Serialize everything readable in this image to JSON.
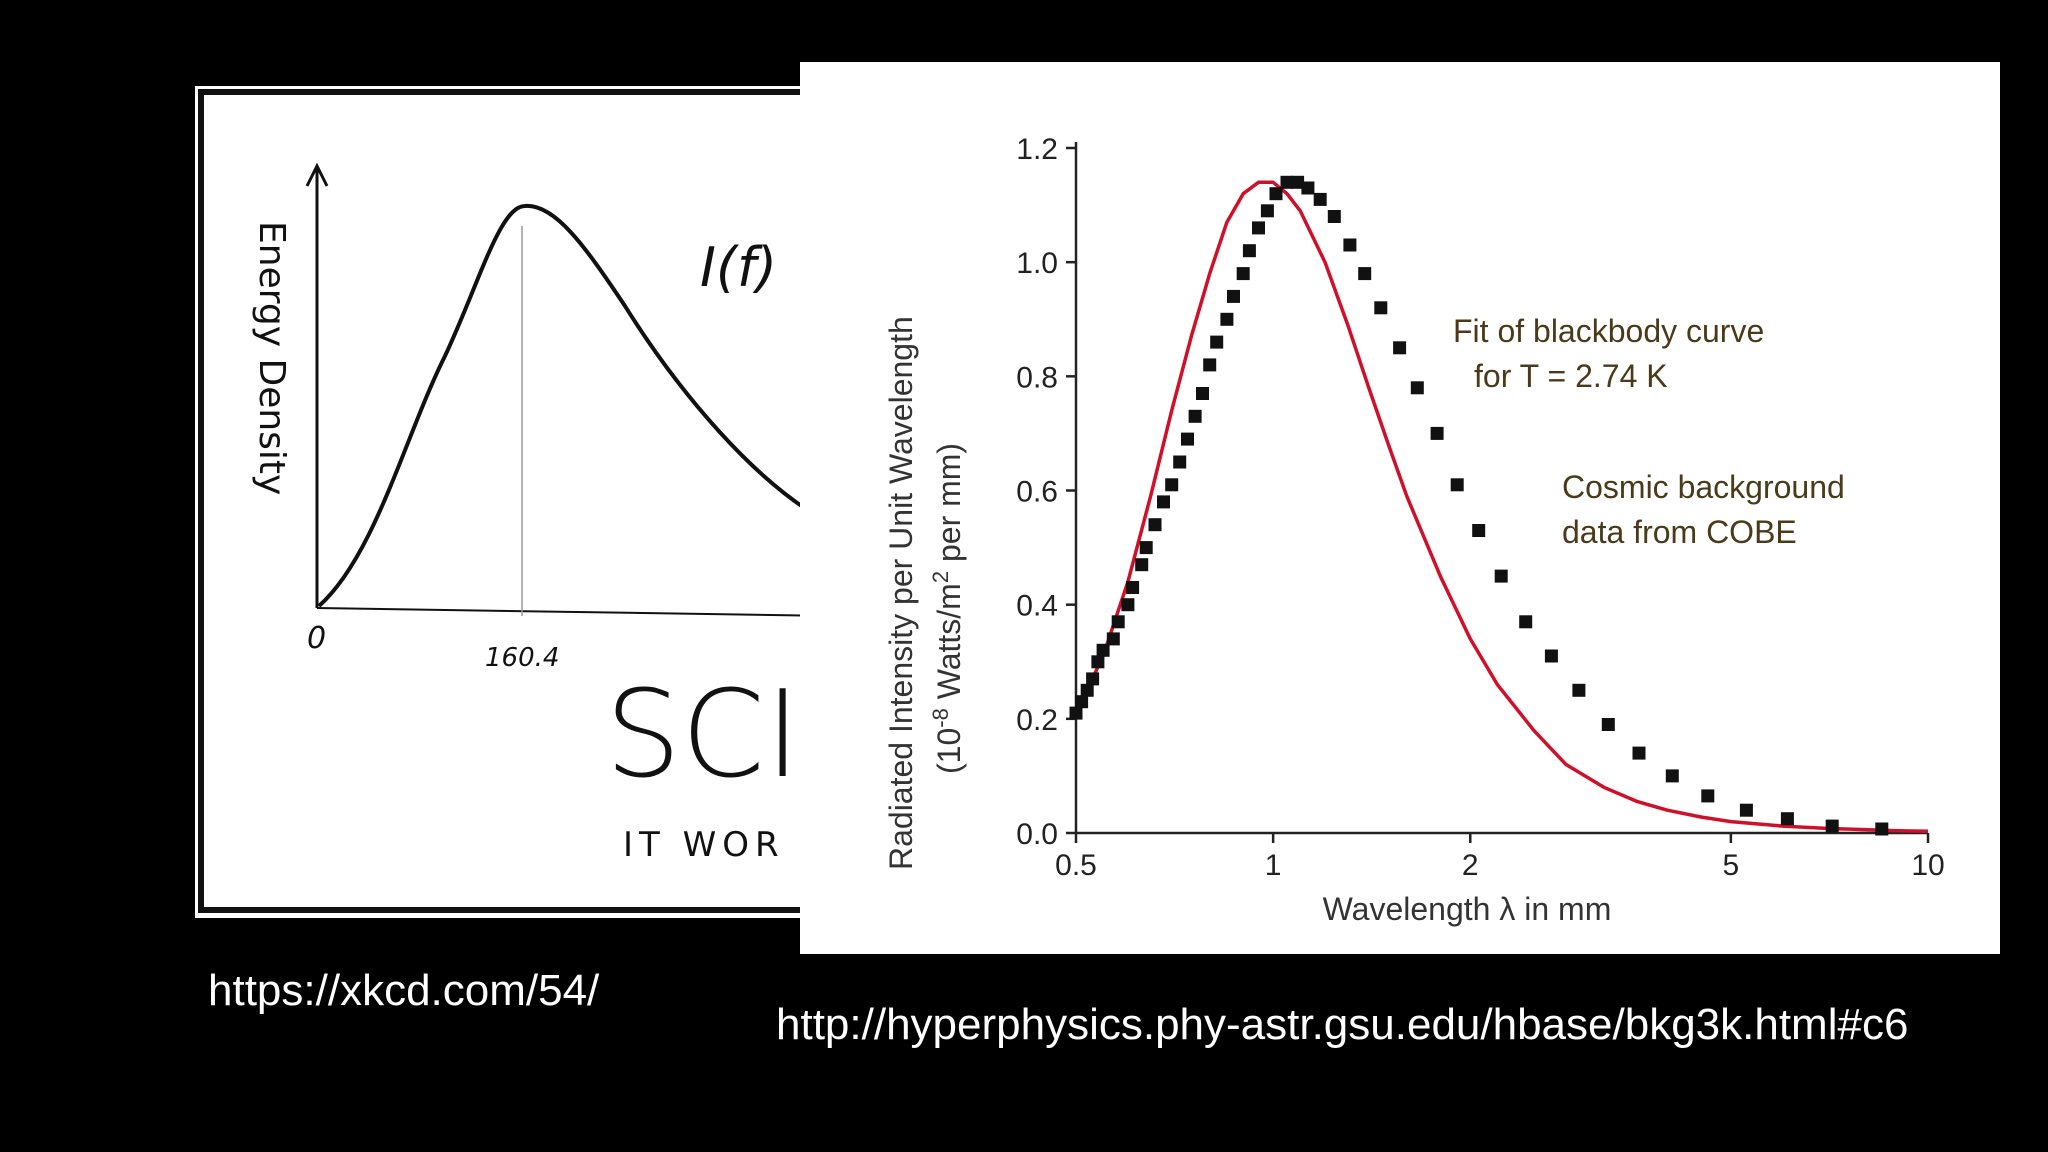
{
  "comic": {
    "ylabel": "Energy Density",
    "origin_label": "0",
    "peak_label": "160.4",
    "formula_fragment": "I(f)",
    "big_text": "SCI",
    "subtext": "IT WOR"
  },
  "chart_data": {
    "type": "scatter",
    "title": "",
    "xlabel": "Wavelength λ in mm",
    "ylabel_line1": "Radiated Intensity per Unit Wavelength",
    "ylabel_line2_prefix": "(10",
    "ylabel_line2_exp": "-8",
    "ylabel_line2_mid": " Watts/m",
    "ylabel_line2_exp2": "2",
    "ylabel_line2_suffix": " per mm)",
    "x_scale": "log",
    "xlim": [
      0.5,
      10
    ],
    "ylim": [
      0.0,
      1.2
    ],
    "x_ticks": [
      0.5,
      1,
      2,
      5,
      10
    ],
    "x_tick_labels": [
      "0.5",
      "1",
      "2",
      "5",
      "10"
    ],
    "y_ticks": [
      0.0,
      0.2,
      0.4,
      0.6,
      0.8,
      1.0,
      1.2
    ],
    "y_tick_labels": [
      "0.0",
      "0.2",
      "0.4",
      "0.6",
      "0.8",
      "1.0",
      "1.2"
    ],
    "annotations": [
      "Fit of blackbody curve",
      "for T = 2.74 K",
      "Cosmic background",
      "data from COBE"
    ],
    "series": [
      {
        "kind": "line",
        "color": "#d0102a",
        "x": [
          0.5,
          0.55,
          0.6,
          0.65,
          0.7,
          0.75,
          0.8,
          0.85,
          0.9,
          0.95,
          1.0,
          1.05,
          1.1,
          1.2,
          1.3,
          1.4,
          1.5,
          1.6,
          1.8,
          2.0,
          2.2,
          2.5,
          2.8,
          3.2,
          3.6,
          4.0,
          4.5,
          5.0,
          6.0,
          7.0,
          8.0,
          9.0,
          10.0
        ],
        "y": [
          0.21,
          0.31,
          0.44,
          0.59,
          0.74,
          0.87,
          0.98,
          1.07,
          1.12,
          1.14,
          1.14,
          1.12,
          1.09,
          1.0,
          0.89,
          0.78,
          0.68,
          0.59,
          0.45,
          0.34,
          0.26,
          0.18,
          0.12,
          0.08,
          0.055,
          0.04,
          0.028,
          0.02,
          0.012,
          0.008,
          0.006,
          0.004,
          0.003
        ]
      },
      {
        "kind": "points",
        "color": "#111111",
        "x": [
          0.5,
          0.51,
          0.52,
          0.53,
          0.54,
          0.55,
          0.57,
          0.58,
          0.6,
          0.61,
          0.63,
          0.64,
          0.66,
          0.68,
          0.7,
          0.72,
          0.74,
          0.76,
          0.78,
          0.8,
          0.82,
          0.85,
          0.87,
          0.9,
          0.92,
          0.95,
          0.98,
          1.01,
          1.05,
          1.09,
          1.13,
          1.18,
          1.24,
          1.31,
          1.38,
          1.46,
          1.56,
          1.66,
          1.78,
          1.91,
          2.06,
          2.23,
          2.43,
          2.66,
          2.93,
          3.25,
          3.62,
          4.07,
          4.61,
          5.28,
          6.1,
          7.14,
          8.5
        ],
        "y": [
          0.21,
          0.23,
          0.25,
          0.27,
          0.3,
          0.32,
          0.34,
          0.37,
          0.4,
          0.43,
          0.47,
          0.5,
          0.54,
          0.58,
          0.61,
          0.65,
          0.69,
          0.73,
          0.77,
          0.82,
          0.86,
          0.9,
          0.94,
          0.98,
          1.02,
          1.06,
          1.09,
          1.12,
          1.14,
          1.14,
          1.13,
          1.11,
          1.08,
          1.03,
          0.98,
          0.92,
          0.85,
          0.78,
          0.7,
          0.61,
          0.53,
          0.45,
          0.37,
          0.31,
          0.25,
          0.19,
          0.14,
          0.1,
          0.065,
          0.04,
          0.025,
          0.012,
          0.007
        ]
      }
    ]
  },
  "links": {
    "xkcd": "https://xkcd.com/54/",
    "hyperphysics": "http://hyperphysics.phy-astr.gsu.edu/hbase/bkg3k.html#c6"
  }
}
